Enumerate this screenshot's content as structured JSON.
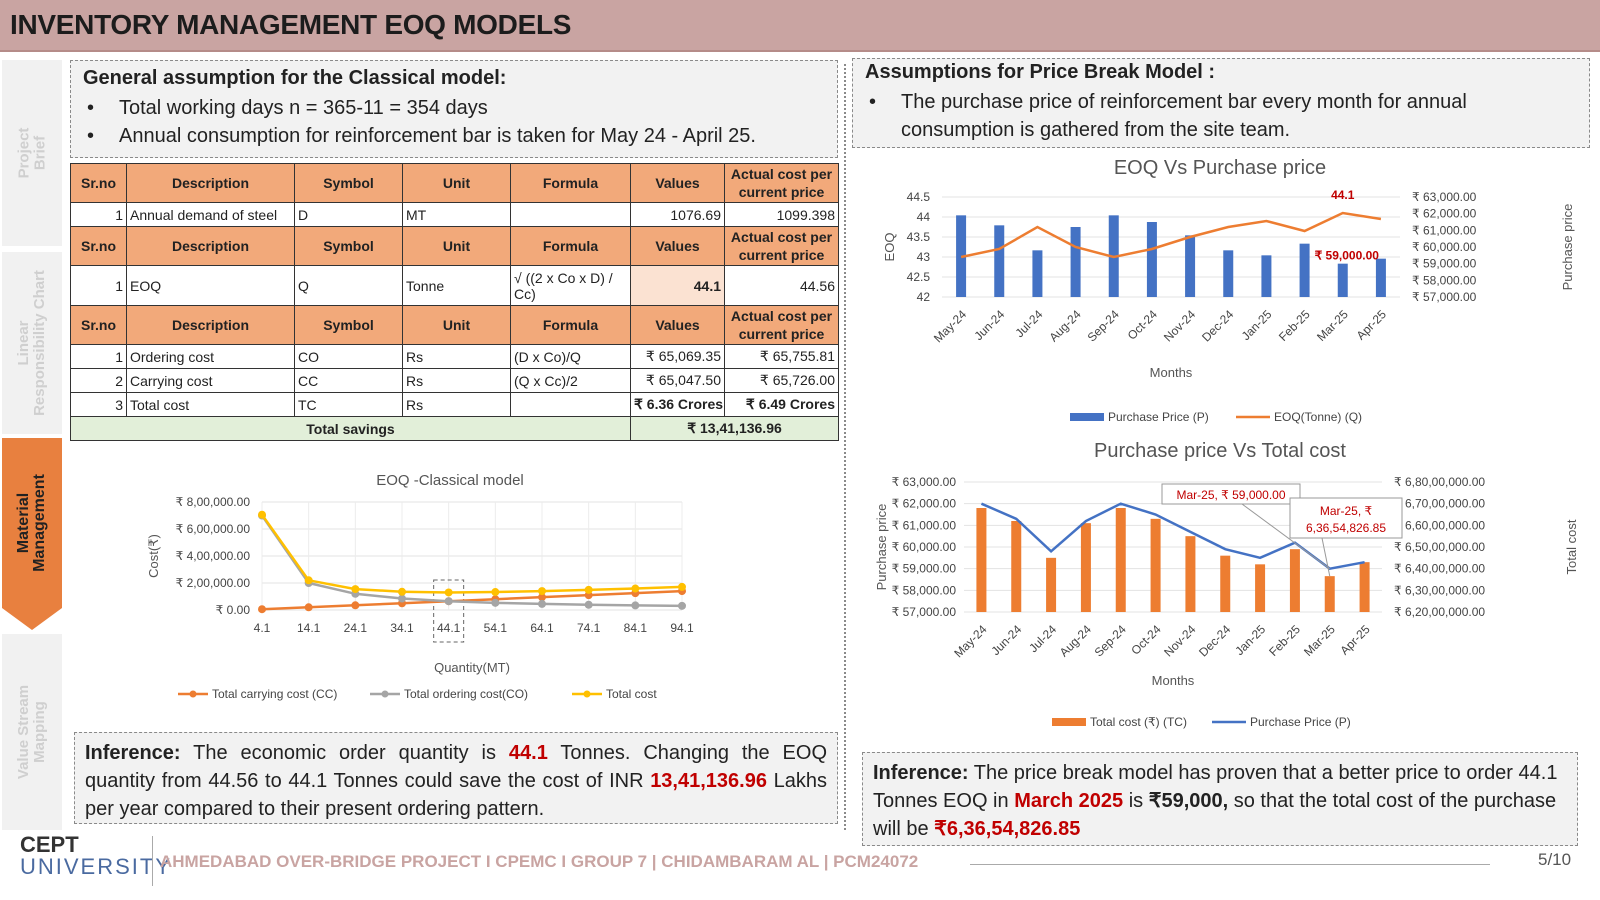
{
  "header": {
    "title": "INVENTORY MANAGEMENT EOQ MODELS"
  },
  "sidebar": {
    "tabs": [
      {
        "label1": "Project",
        "label2": "Brief"
      },
      {
        "label1": "Linear",
        "label2": "Responsibility Chart"
      },
      {
        "label1": "Material",
        "label2": "Management"
      },
      {
        "label1": "Value Stream",
        "label2": "Mapping"
      }
    ]
  },
  "left_assumptions": {
    "title": "General assumption for the Classical model:",
    "items": [
      "Total working days n = 365-11 = 354 days",
      "Annual consumption for reinforcement bar is taken for May 24 - April 25."
    ]
  },
  "right_assumptions": {
    "title": "Assumptions for Price Break Model :",
    "items": [
      "The purchase price of reinforcement bar every month for annual consumption is gathered from the site team."
    ]
  },
  "table": {
    "headers": [
      "Sr.no",
      "Description",
      "Symbol",
      "Unit",
      "Formula",
      "Values",
      "Actual cost per current price"
    ],
    "demand_row": [
      "1",
      "Annual demand of steel",
      "D",
      "MT",
      "",
      "1076.69",
      "1099.398"
    ],
    "eoq_row": [
      "1",
      "EOQ",
      "Q",
      "Tonne",
      "√ ((2 x Co x D) / Cc)",
      "44.1",
      "44.56"
    ],
    "cost_rows": [
      [
        "1",
        "Ordering cost",
        "CO",
        "Rs",
        "(D x Co)/Q",
        "₹ 65,069.35",
        "₹ 65,755.81"
      ],
      [
        "2",
        "Carrying cost",
        "CC",
        "Rs",
        "(Q x Cc)/2",
        "₹ 65,047.50",
        "₹ 65,726.00"
      ],
      [
        "3",
        "Total cost",
        "TC",
        "Rs",
        "",
        "₹ 6.36 Crores",
        "₹ 6.49 Crores"
      ]
    ],
    "savings_label": "Total savings",
    "savings_value": "₹ 13,41,136.96"
  },
  "chart_data": [
    {
      "type": "line",
      "title": "EOQ -Classical model",
      "xlabel": "Quantity(MT)",
      "ylabel": "Cost(₹)",
      "x": [
        4.1,
        14.1,
        24.1,
        34.1,
        44.1,
        54.1,
        64.1,
        74.1,
        84.1,
        94.1
      ],
      "yticks": [
        "₹ 0.00",
        "₹ 2,00,000.00",
        "₹ 4,00,000.00",
        "₹ 6,00,000.00",
        "₹ 8,00,000.00"
      ],
      "ylim": [
        0,
        800000
      ],
      "highlight_x": 44.1,
      "series": [
        {
          "name": "Total carrying cost (CC)",
          "color": "#ed7d31",
          "values": [
            6000,
            20000,
            35000,
            50000,
            65000,
            80000,
            95000,
            110000,
            125000,
            140000
          ]
        },
        {
          "name": "Total ordering cost(CO)",
          "color": "#a5a5a5",
          "values": [
            700000,
            200000,
            120000,
            85000,
            65000,
            53000,
            45000,
            39000,
            34000,
            31000
          ]
        },
        {
          "name": "Total cost",
          "color": "#ffc000",
          "values": [
            706000,
            220000,
            155000,
            135000,
            130000,
            133000,
            140000,
            149000,
            159000,
            171000
          ]
        }
      ]
    },
    {
      "type": "bar",
      "title": "EOQ Vs Purchase price",
      "xlabel": "Months",
      "ylabel": "EOQ",
      "y2label": "Purchase price",
      "categories": [
        "May-24",
        "Jun-24",
        "Jul-24",
        "Aug-24",
        "Sep-24",
        "Oct-24",
        "Nov-24",
        "Dec-24",
        "Jan-25",
        "Feb-25",
        "Mar-25",
        "Apr-25"
      ],
      "yticks": [
        "42",
        "42.5",
        "43",
        "43.5",
        "44",
        "44.5"
      ],
      "ylim": [
        42,
        44.5
      ],
      "y2ticks": [
        "₹ 57,000.00",
        "₹ 58,000.00",
        "₹ 59,000.00",
        "₹ 60,000.00",
        "₹ 61,000.00",
        "₹ 62,000.00",
        "₹ 63,000.00"
      ],
      "y2lim": [
        57000,
        63000
      ],
      "series": [
        {
          "name": "Purchase Price (P)",
          "color": "#4472c4",
          "axis": "right",
          "values": [
            61900,
            61300,
            59800,
            61200,
            61900,
            61500,
            60700,
            59800,
            59500,
            60200,
            59000,
            59300
          ]
        },
        {
          "name": "EOQ(Tonne) (Q)",
          "color": "#ed7d31",
          "axis": "left",
          "values": [
            43.0,
            43.2,
            43.75,
            43.25,
            43.0,
            43.2,
            43.5,
            43.75,
            43.9,
            43.65,
            44.1,
            43.95
          ]
        }
      ],
      "annotations": [
        "44.1",
        "₹ 59,000.00"
      ]
    },
    {
      "type": "bar",
      "title": "Purchase price Vs Total cost",
      "xlabel": "Months",
      "ylabel": "Purchase price",
      "y2label": "Total cost",
      "categories": [
        "May-24",
        "Jun-24",
        "Jul-24",
        "Aug-24",
        "Sep-24",
        "Oct-24",
        "Nov-24",
        "Dec-24",
        "Jan-25",
        "Feb-25",
        "Mar-25",
        "Apr-25"
      ],
      "yticks": [
        "₹ 57,000.00",
        "₹ 58,000.00",
        "₹ 59,000.00",
        "₹ 60,000.00",
        "₹ 61,000.00",
        "₹ 62,000.00",
        "₹ 63,000.00"
      ],
      "ylim": [
        57000,
        63000
      ],
      "y2ticks": [
        "₹ 6,20,00,000.00",
        "₹ 6,30,00,000.00",
        "₹ 6,40,00,000.00",
        "₹ 6,50,00,000.00",
        "₹ 6,60,00,000.00",
        "₹ 6,70,00,000.00",
        "₹ 6,80,00,000.00"
      ],
      "y2lim": [
        62000000,
        68000000
      ],
      "series": [
        {
          "name": "Total cost (₹) (TC)",
          "color": "#ed7d31",
          "axis": "right",
          "values": [
            66800000,
            66200000,
            64500000,
            66100000,
            66800000,
            66300000,
            65500000,
            64600000,
            64200000,
            64900000,
            63654826.85,
            64300000
          ]
        },
        {
          "name": "Purchase Price (P)",
          "color": "#4472c4",
          "axis": "left",
          "values": [
            62000,
            61300,
            59800,
            61200,
            62000,
            61500,
            60700,
            59900,
            59500,
            60200,
            59000,
            59300
          ]
        }
      ],
      "annotations": [
        "Mar-25, ₹ 59,000.00",
        "Mar-25, ₹",
        "6,36,54,826.85"
      ]
    }
  ],
  "inference_left": {
    "label": "Inference:",
    "t1": " The economic order quantity is ",
    "v1": "44.1",
    "t2": " Tonnes. Changing the EOQ quantity from 44.56 to 44.1 Tonnes could save the cost of INR ",
    "v2": "13,41,136.96",
    "t3": " Lakhs per year compared to their present ordering pattern."
  },
  "inference_right": {
    "label": "Inference:",
    "t1": " The price break model has proven that a better price to order 44.1 Tonnes EOQ in ",
    "v1": "March 2025",
    "t2": " is ",
    "v2": "₹59,000,",
    "t3": " so that the total cost of the purchase will be ",
    "v3": "₹6,36,54,826.85"
  },
  "footer": {
    "logo1": "CEPT",
    "logo2": "UNIVERSITY",
    "text": "AHMEDABAD OVER-BRIDGE PROJECT I CPEMC I GROUP 7 | CHIDAMBARAM AL | PCM24072",
    "page": "5/10"
  }
}
